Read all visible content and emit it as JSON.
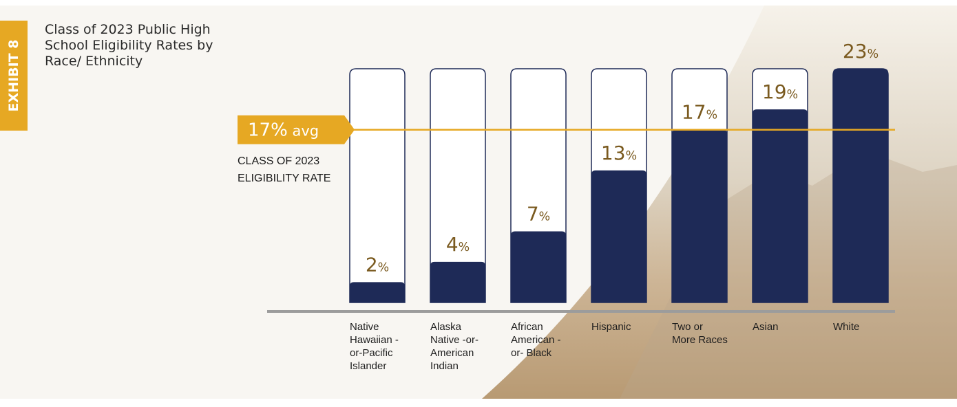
{
  "exhibit": "EXHIBIT 8",
  "chart_data": {
    "type": "bar",
    "title": "Class of 2023 Public High School Eligibility Rates by Race/ Ethnicity",
    "categories": [
      "Native Hawaiian -or-Pacific Islander",
      "Alaska Native -or- American Indian",
      "African American -or- Black",
      "Hispanic",
      "Two or More Races",
      "Asian",
      "White"
    ],
    "values": [
      2,
      4,
      7,
      13,
      17,
      19,
      23
    ],
    "value_labels": [
      "2%",
      "4%",
      "7%",
      "13%",
      "17%",
      "19%",
      "23%"
    ],
    "color": "#1e2a57",
    "ylim": [
      0,
      23
    ],
    "reference_line": {
      "value": 17,
      "label": "17% avg",
      "annotation": "CLASS OF 2023 ELIGIBILITY RATE",
      "color": "#e6a823"
    }
  }
}
